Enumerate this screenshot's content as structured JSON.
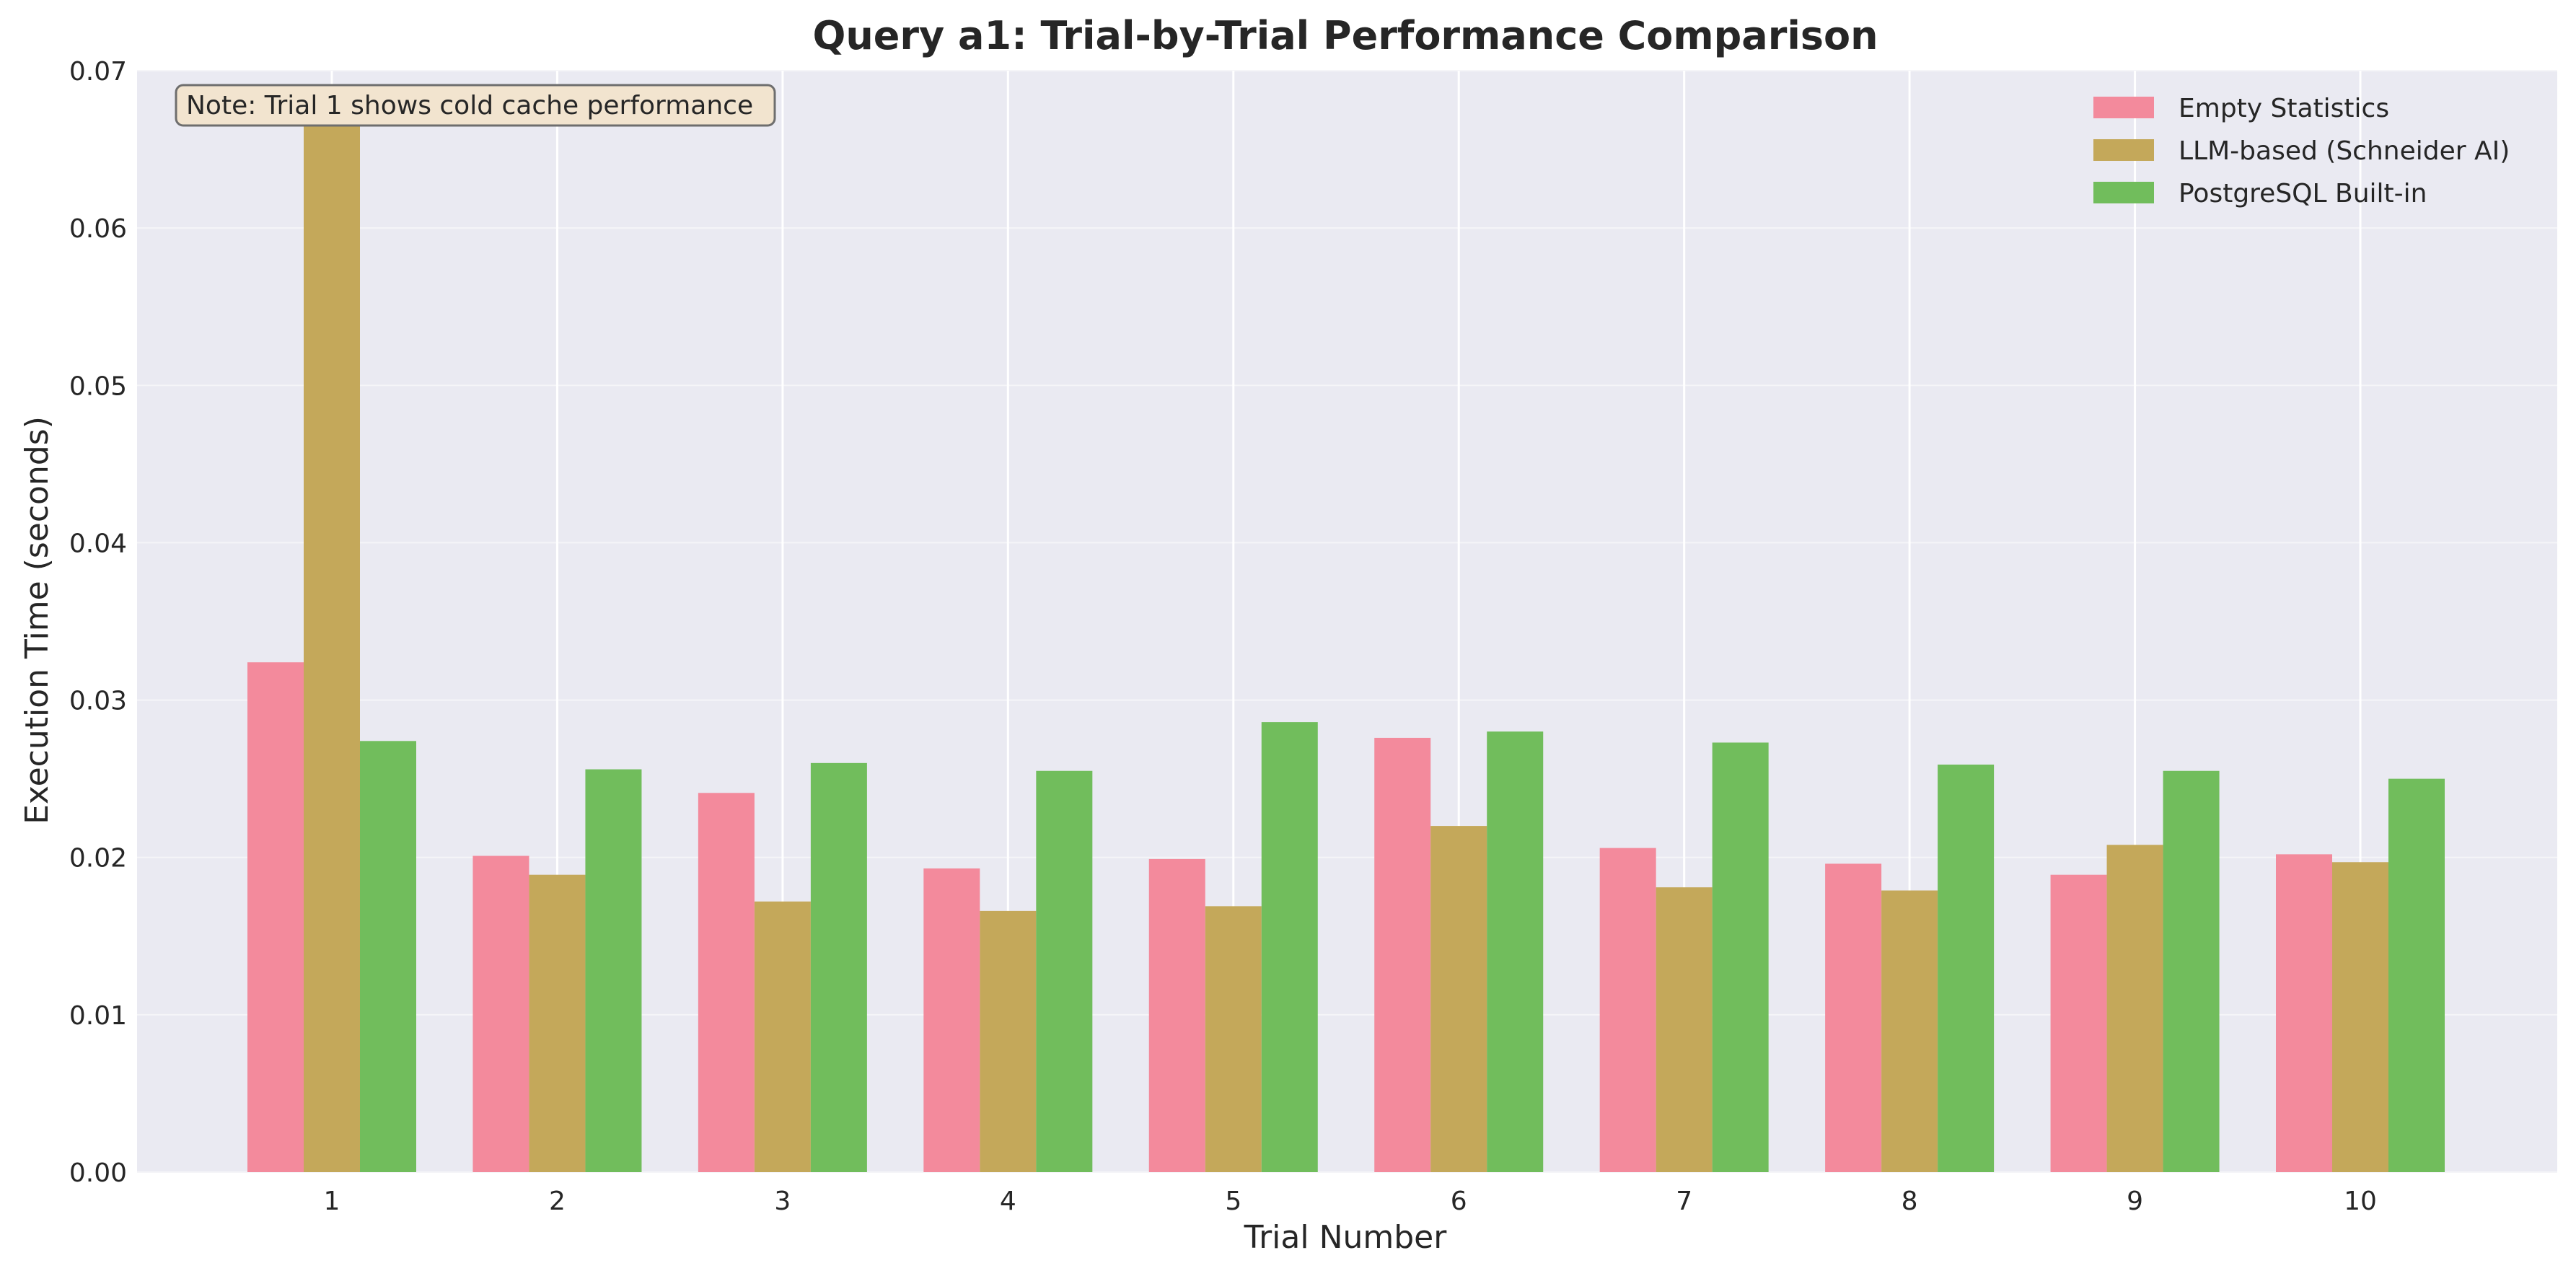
{
  "chart_data": {
    "type": "bar",
    "title": "Query a1: Trial-by-Trial Performance Comparison",
    "xlabel": "Trial Number",
    "ylabel": "Execution Time (seconds)",
    "categories": [
      "1",
      "2",
      "3",
      "4",
      "5",
      "6",
      "7",
      "8",
      "9",
      "10"
    ],
    "ylim": [
      0,
      0.07
    ],
    "yticks": [
      "0.00",
      "0.01",
      "0.02",
      "0.03",
      "0.04",
      "0.05",
      "0.06",
      "0.07"
    ],
    "grid": true,
    "legend_position": "top-right",
    "annotation": "Note: Trial 1 shows cold cache performance",
    "series": [
      {
        "name": "Empty Statistics",
        "color": "#f38a9c",
        "values": [
          0.0324,
          0.0201,
          0.0241,
          0.0193,
          0.0199,
          0.0276,
          0.0206,
          0.0196,
          0.0189,
          0.0202
        ]
      },
      {
        "name": "LLM-based (Schneider AI)",
        "color": "#c4a85a",
        "values": [
          0.067,
          0.0189,
          0.0172,
          0.0166,
          0.0169,
          0.022,
          0.0181,
          0.0179,
          0.0208,
          0.0197
        ]
      },
      {
        "name": "PostgreSQL Built-in",
        "color": "#71bd5c",
        "values": [
          0.0274,
          0.0256,
          0.026,
          0.0255,
          0.0286,
          0.028,
          0.0273,
          0.0259,
          0.0255,
          0.025
        ]
      }
    ]
  }
}
